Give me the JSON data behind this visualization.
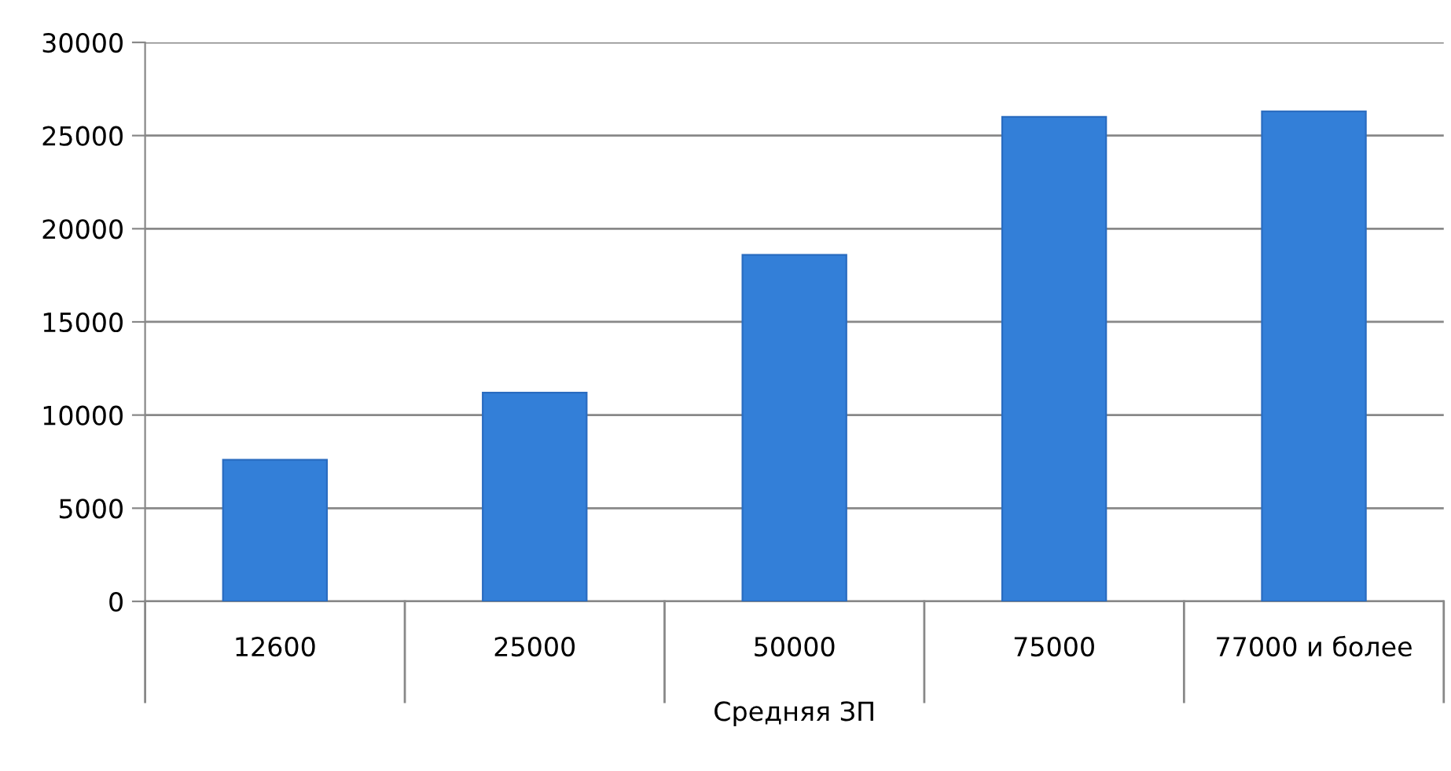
{
  "chart_data": {
    "type": "bar",
    "xlabel": "Средняя ЗП",
    "categories": [
      "12600",
      "25000",
      "50000",
      "75000",
      "77000 и более"
    ],
    "values": [
      7600,
      11200,
      18600,
      26000,
      26300
    ],
    "color": "#337fd8",
    "ylim": [
      0,
      30000
    ],
    "yticks": [
      0,
      5000,
      10000,
      15000,
      20000,
      25000,
      30000
    ],
    "grid": "y"
  }
}
